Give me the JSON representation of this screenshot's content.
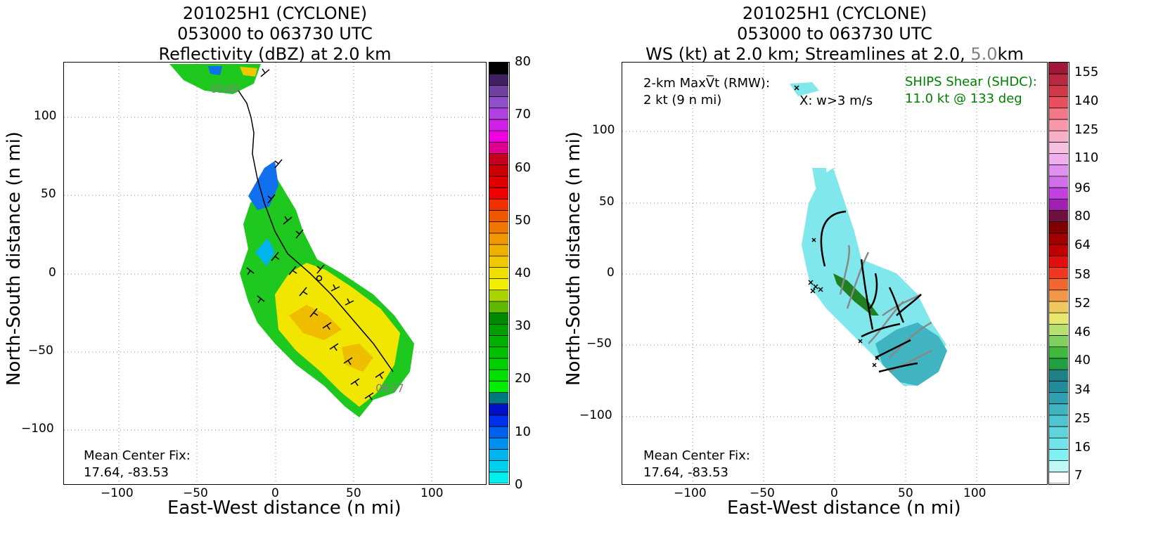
{
  "left": {
    "title": [
      "201025H1 (CYCLONE)",
      "053000 to 063730 UTC",
      "Reflectivity (dBZ) at 2.0 km"
    ],
    "xlabel": "East-West distance (n mi)",
    "ylabel": "North-South distance (n mi)",
    "xticks": [
      "−100",
      "−50",
      "0",
      "50",
      "100"
    ],
    "yticks": [
      "100",
      "50",
      "0",
      "−50",
      "−100"
    ],
    "center_fix": [
      "Mean Center Fix:",
      "17.64, -83.53"
    ],
    "track_start_label": "0540",
    "track_end_label": "0637",
    "colorbar_labels": [
      "80",
      "70",
      "60",
      "50",
      "40",
      "30",
      "20",
      "10",
      "0"
    ]
  },
  "right": {
    "title_line1": "201025H1 (CYCLONE)",
    "title_line2": "053000 to 063730 UTC",
    "title_line3_a": "WS (kt) at 2.0 km; Streamlines at 2.0, ",
    "title_line3_b": "5.0",
    "title_line3_c": "km",
    "xlabel": "East-West distance (n mi)",
    "ylabel": "North-South distance (n mi)",
    "xticks": [
      "−100",
      "−50",
      "0",
      "50",
      "100"
    ],
    "yticks": [
      "100",
      "50",
      "0",
      "−50",
      "−100"
    ],
    "maxvt_line1": "2-km MaxV̅t (RMW):",
    "maxvt_line2": "2 kt (9 n mi)",
    "w_note": "X: w>3 m/s",
    "shear_line1": "SHIPS Shear (SHDC):",
    "shear_line2": "11.0 kt @ 133 deg",
    "center_fix": [
      "Mean Center Fix:",
      "17.64, -83.53"
    ],
    "colorbar_labels": [
      "155",
      "140",
      "125",
      "110",
      "96",
      "80",
      "64",
      "58",
      "52",
      "46",
      "40",
      "34",
      "25",
      "16",
      "7"
    ]
  },
  "colors": {
    "refl_scale": [
      "#00eeee",
      "#00d0ee",
      "#00b4ee",
      "#0090ee",
      "#0060ee",
      "#0030ee",
      "#0010c8",
      "#007880",
      "#00ee00",
      "#00e000",
      "#00d000",
      "#00c000",
      "#00b000",
      "#00a000",
      "#008c00",
      "#60b800",
      "#a8d400",
      "#f0f000",
      "#f0e000",
      "#f0c800",
      "#f0b000",
      "#f09800",
      "#f07800",
      "#f05800",
      "#f03000",
      "#f00000",
      "#e00000",
      "#cc0000",
      "#c80020",
      "#e00090",
      "#f000e0",
      "#d020e8",
      "#b040e0",
      "#9050c8",
      "#7040a0",
      "#402060",
      "#000000"
    ],
    "ws_scale": [
      "#ffffff",
      "#c0f8f8",
      "#80f0f0",
      "#70e4e8",
      "#60d4dc",
      "#50c4d0",
      "#40b4c0",
      "#30a0b0",
      "#208c9c",
      "#208088",
      "#20a040",
      "#40b840",
      "#80d060",
      "#b8e070",
      "#e8e870",
      "#f0c860",
      "#f09848",
      "#f06830",
      "#f03820",
      "#e01010",
      "#c00000",
      "#a00000",
      "#800000",
      "#701040",
      "#a020b0",
      "#c040e0",
      "#d070e8",
      "#e090f0",
      "#f0b0f0",
      "#f8c0e0",
      "#f8b0c8",
      "#f898a8",
      "#f07888",
      "#e85060",
      "#d03848",
      "#b82840",
      "#a01838"
    ],
    "shear_text": "#008000",
    "track": "#000000"
  },
  "chart_data": [
    {
      "type": "heatmap",
      "title": "Reflectivity (dBZ) at 2.0 km",
      "xlabel": "East-West distance (n mi)",
      "ylabel": "North-South distance (n mi)",
      "xlim": [
        -135,
        135
      ],
      "ylim": [
        -135,
        135
      ],
      "colorbar": {
        "min": 0,
        "max": 80,
        "ticks": [
          0,
          10,
          20,
          30,
          40,
          50,
          60,
          70,
          80
        ]
      },
      "track": {
        "start": "0540",
        "end": "0637",
        "points": [
          [
            -35,
            118
          ],
          [
            -22,
            102
          ],
          [
            -15,
            85
          ],
          [
            -5,
            60
          ],
          [
            10,
            20
          ],
          [
            35,
            -20
          ],
          [
            60,
            -60
          ]
        ]
      },
      "grid": true
    },
    {
      "type": "heatmap",
      "title": "WS (kt) at 2.0 km; Streamlines at 2.0, 5.0km",
      "xlabel": "East-West distance (n mi)",
      "ylabel": "North-South distance (n mi)",
      "xlim": [
        -150,
        150
      ],
      "ylim": [
        -150,
        150
      ],
      "colorbar": {
        "ticks": [
          7,
          16,
          25,
          34,
          40,
          46,
          52,
          58,
          64,
          80,
          96,
          110,
          125,
          140,
          155
        ]
      },
      "grid": true
    }
  ]
}
